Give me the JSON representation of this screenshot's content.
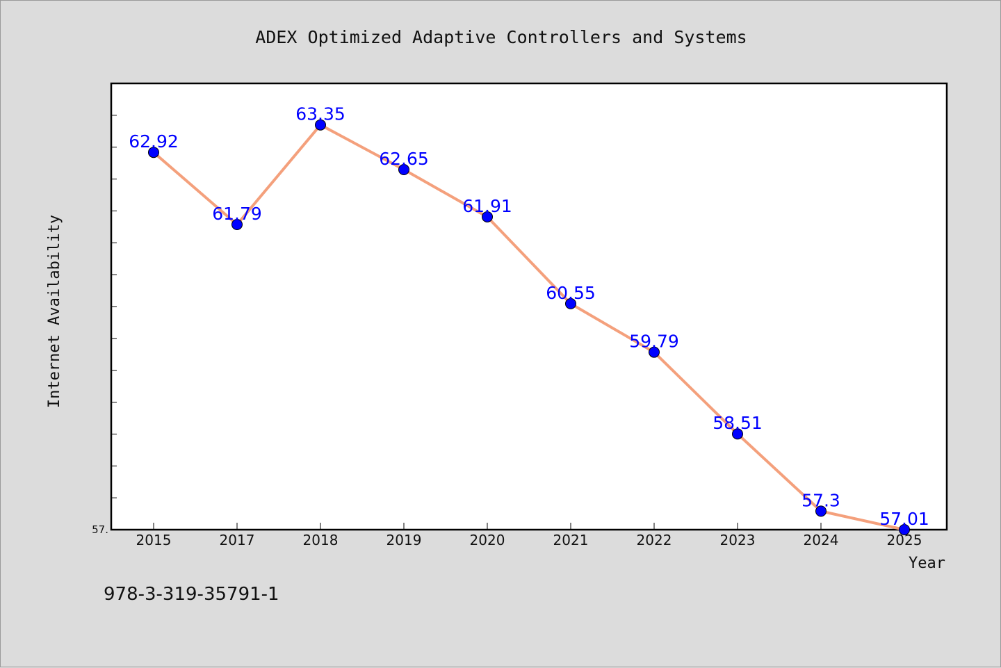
{
  "footer_text": "978-3-319-35791-1",
  "colors": {
    "background": "#dcdcdc",
    "plot_background": "#ffffff",
    "line": "#f4a07c",
    "marker": "#0000ff",
    "data_label": "#0000ff"
  },
  "chart_data": {
    "type": "line",
    "title": "ADEX Optimized Adaptive Controllers and Systems",
    "xlabel": "Year",
    "ylabel": "Internet Availability",
    "categories": [
      "2015",
      "2017",
      "2018",
      "2019",
      "2020",
      "2021",
      "2022",
      "2023",
      "2024",
      "2025"
    ],
    "series": [
      {
        "values": [
          62.92,
          61.79,
          63.35,
          62.65,
          61.91,
          60.55,
          59.79,
          58.51,
          57.3,
          57.01
        ],
        "labels": [
          "62.92",
          "61.79",
          "63.35",
          "62.65",
          "61.91",
          "60.55",
          "59.79",
          "58.51",
          "57.3",
          "57.01"
        ]
      }
    ],
    "ylim": [
      57.01,
      64.0
    ],
    "ylim_label": "57.",
    "grid": false,
    "legend": "none"
  }
}
